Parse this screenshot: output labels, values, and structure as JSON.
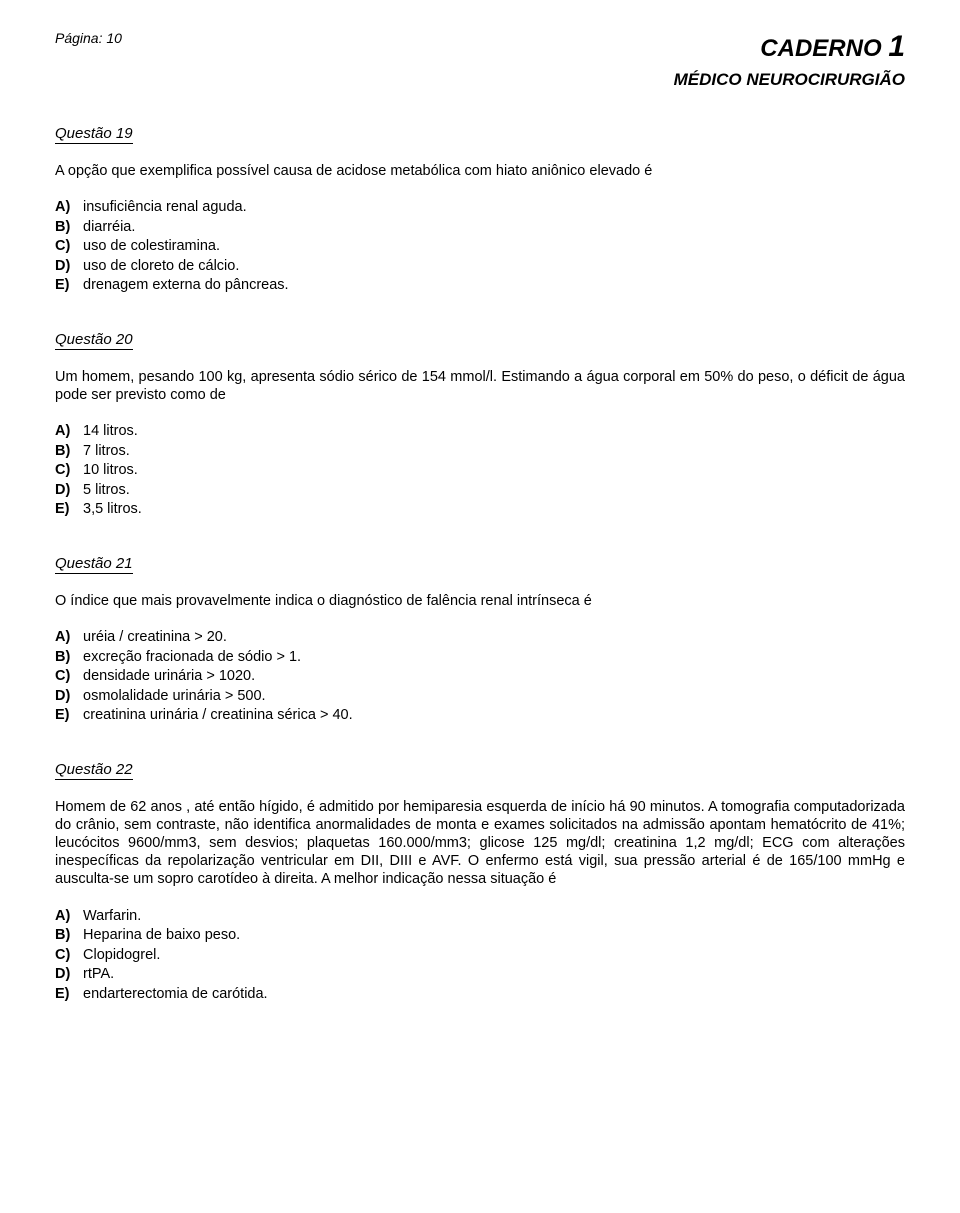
{
  "header": {
    "page_label": "Página: 10",
    "caderno_label": "CADERNO",
    "caderno_num": "1",
    "subtitle": "MÉDICO NEUROCIRURGIÃO"
  },
  "questions": [
    {
      "title": "Questão 19",
      "text": "A opção que exemplifica possível causa de acidose metabólica com hiato aniônico elevado é",
      "options": [
        {
          "letter": "A)",
          "text": "insuficiência renal aguda."
        },
        {
          "letter": "B)",
          "text": "diarréia."
        },
        {
          "letter": "C)",
          "text": "uso de colestiramina."
        },
        {
          "letter": "D)",
          "text": "uso de cloreto de cálcio."
        },
        {
          "letter": "E)",
          "text": "drenagem externa do pâncreas."
        }
      ]
    },
    {
      "title": "Questão 20",
      "text": "Um homem, pesando 100 kg, apresenta sódio sérico de 154 mmol/l. Estimando a água corporal em 50% do peso, o déficit de água pode ser previsto como de",
      "options": [
        {
          "letter": "A)",
          "text": "14 litros."
        },
        {
          "letter": "B)",
          "text": "7 litros."
        },
        {
          "letter": "C)",
          "text": "10 litros."
        },
        {
          "letter": "D)",
          "text": "5 litros."
        },
        {
          "letter": "E)",
          "text": "3,5 litros."
        }
      ]
    },
    {
      "title": "Questão 21",
      "text": "O índice que mais provavelmente indica o diagnóstico de falência renal intrínseca é",
      "options": [
        {
          "letter": "A)",
          "text": "uréia / creatinina > 20."
        },
        {
          "letter": "B)",
          "text": "excreção fracionada de sódio > 1."
        },
        {
          "letter": "C)",
          "text": "densidade urinária > 1020."
        },
        {
          "letter": "D)",
          "text": "osmolalidade  urinária > 500."
        },
        {
          "letter": "E)",
          "text": "creatinina urinária / creatinina sérica > 40."
        }
      ]
    },
    {
      "title": "Questão 22",
      "text": "Homem de 62 anos , até então hígido, é admitido por hemiparesia esquerda de início há 90 minutos. A tomografia computadorizada do crânio, sem contraste, não identifica anormalidades de monta e exames solicitados na admissão apontam hematócrito de 41%; leucócitos 9600/mm3, sem desvios; plaquetas 160.000/mm3; glicose 125 mg/dl; creatinina 1,2 mg/dl; ECG com alterações inespecíficas da repolarização ventricular em DII, DIII e AVF. O enfermo está vigil, sua pressão arterial é de 165/100 mmHg e ausculta-se um sopro carotídeo à direita. A melhor indicação nessa situação é",
      "options": [
        {
          "letter": "A)",
          "text": "Warfarin."
        },
        {
          "letter": "B)",
          "text": "Heparina de baixo peso."
        },
        {
          "letter": "C)",
          "text": "Clopidogrel."
        },
        {
          "letter": "D)",
          "text": "rtPA."
        },
        {
          "letter": "E)",
          "text": "endarterectomia de carótida."
        }
      ]
    }
  ]
}
